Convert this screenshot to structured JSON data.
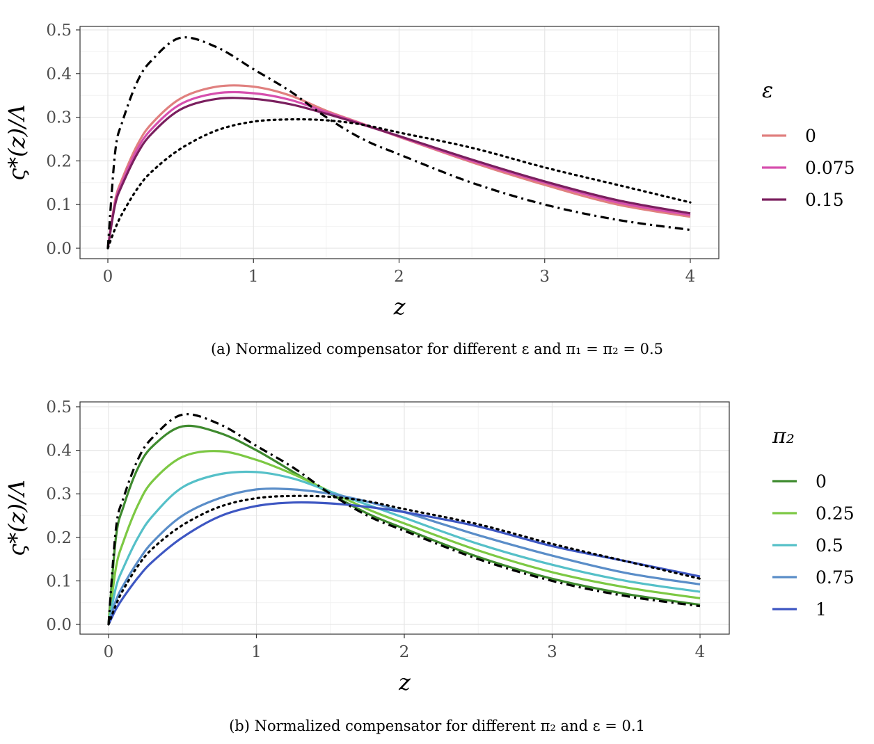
{
  "chart_data": [
    {
      "type": "line",
      "xlabel": "z",
      "ylabel": "ς*(z)/Λ",
      "xlim": [
        0,
        4
      ],
      "ylim": [
        0,
        0.5
      ],
      "x_ticks": [
        "0",
        "1",
        "2",
        "3",
        "4"
      ],
      "y_ticks": [
        "0.0",
        "0.1",
        "0.2",
        "0.3",
        "0.4",
        "0.5"
      ],
      "grid": true,
      "legend": {
        "title": "ε",
        "position": "right"
      },
      "caption": "(a) Normalized compensator for different ε and π₁ = π₂ = 0.5",
      "x": [
        0,
        0.05,
        0.1,
        0.2,
        0.3,
        0.5,
        0.75,
        1.0,
        1.25,
        1.5,
        1.75,
        2.0,
        2.5,
        3.0,
        3.5,
        4.0
      ],
      "series": [
        {
          "name": "0",
          "color": "#E0807F",
          "style": "solid",
          "values": [
            0,
            0.11,
            0.16,
            0.235,
            0.285,
            0.343,
            0.37,
            0.37,
            0.35,
            0.315,
            0.285,
            0.255,
            0.197,
            0.145,
            0.1,
            0.072
          ]
        },
        {
          "name": "0.075",
          "color": "#D64FAE",
          "style": "solid",
          "values": [
            0,
            0.105,
            0.153,
            0.225,
            0.273,
            0.33,
            0.355,
            0.355,
            0.34,
            0.312,
            0.284,
            0.256,
            0.2,
            0.15,
            0.105,
            0.076
          ]
        },
        {
          "name": "0.15",
          "color": "#7A1F5E",
          "style": "solid",
          "values": [
            0,
            0.1,
            0.146,
            0.215,
            0.262,
            0.318,
            0.342,
            0.342,
            0.33,
            0.308,
            0.283,
            0.257,
            0.203,
            0.153,
            0.11,
            0.08
          ]
        },
        {
          "name": "",
          "color": "#000000",
          "style": "dashdot",
          "values": [
            0,
            0.22,
            0.29,
            0.38,
            0.43,
            0.482,
            0.46,
            0.41,
            0.36,
            0.3,
            0.25,
            0.215,
            0.15,
            0.1,
            0.065,
            0.042
          ]
        },
        {
          "name": "",
          "color": "#000000",
          "style": "dotted",
          "values": [
            0,
            0.045,
            0.08,
            0.135,
            0.175,
            0.228,
            0.27,
            0.29,
            0.295,
            0.293,
            0.283,
            0.265,
            0.23,
            0.185,
            0.145,
            0.105
          ]
        }
      ]
    },
    {
      "type": "line",
      "xlabel": "z",
      "ylabel": "ς*(z)/Λ",
      "xlim": [
        0,
        4
      ],
      "ylim": [
        0,
        0.5
      ],
      "x_ticks": [
        "0",
        "1",
        "2",
        "3",
        "4"
      ],
      "y_ticks": [
        "0.0",
        "0.1",
        "0.2",
        "0.3",
        "0.4",
        "0.5"
      ],
      "grid": true,
      "legend": {
        "title": "π₂",
        "position": "right"
      },
      "caption": "(b) Normalized compensator for different π₂ and ε = 0.1",
      "x": [
        0,
        0.05,
        0.1,
        0.2,
        0.3,
        0.5,
        0.75,
        1.0,
        1.25,
        1.5,
        1.75,
        2.0,
        2.5,
        3.0,
        3.5,
        4.0
      ],
      "series": [
        {
          "name": "0",
          "color": "#3E8A2E",
          "style": "solid",
          "values": [
            0,
            0.2,
            0.27,
            0.36,
            0.41,
            0.455,
            0.44,
            0.4,
            0.35,
            0.3,
            0.255,
            0.22,
            0.155,
            0.105,
            0.07,
            0.045
          ]
        },
        {
          "name": "0.25",
          "color": "#7CC843",
          "style": "solid",
          "values": [
            0,
            0.13,
            0.19,
            0.275,
            0.33,
            0.385,
            0.398,
            0.378,
            0.345,
            0.305,
            0.265,
            0.232,
            0.17,
            0.12,
            0.085,
            0.06
          ]
        },
        {
          "name": "0.5",
          "color": "#55C0C8",
          "style": "solid",
          "values": [
            0,
            0.085,
            0.13,
            0.2,
            0.25,
            0.315,
            0.345,
            0.35,
            0.335,
            0.305,
            0.275,
            0.245,
            0.185,
            0.137,
            0.1,
            0.075
          ]
        },
        {
          "name": "0.75",
          "color": "#5A8DC8",
          "style": "solid",
          "values": [
            0,
            0.055,
            0.09,
            0.145,
            0.19,
            0.25,
            0.29,
            0.31,
            0.31,
            0.3,
            0.282,
            0.258,
            0.205,
            0.158,
            0.118,
            0.092
          ]
        },
        {
          "name": "1",
          "color": "#3D56C2",
          "style": "solid",
          "values": [
            0,
            0.035,
            0.062,
            0.108,
            0.145,
            0.2,
            0.248,
            0.272,
            0.28,
            0.278,
            0.27,
            0.258,
            0.225,
            0.18,
            0.145,
            0.11
          ]
        },
        {
          "name": "",
          "color": "#000000",
          "style": "dashdot",
          "values": [
            0,
            0.22,
            0.29,
            0.38,
            0.43,
            0.482,
            0.46,
            0.41,
            0.36,
            0.3,
            0.25,
            0.215,
            0.15,
            0.1,
            0.065,
            0.042
          ]
        },
        {
          "name": "",
          "color": "#000000",
          "style": "dotted",
          "values": [
            0,
            0.045,
            0.08,
            0.135,
            0.175,
            0.228,
            0.27,
            0.29,
            0.295,
            0.293,
            0.283,
            0.265,
            0.23,
            0.185,
            0.145,
            0.105
          ]
        }
      ]
    }
  ]
}
